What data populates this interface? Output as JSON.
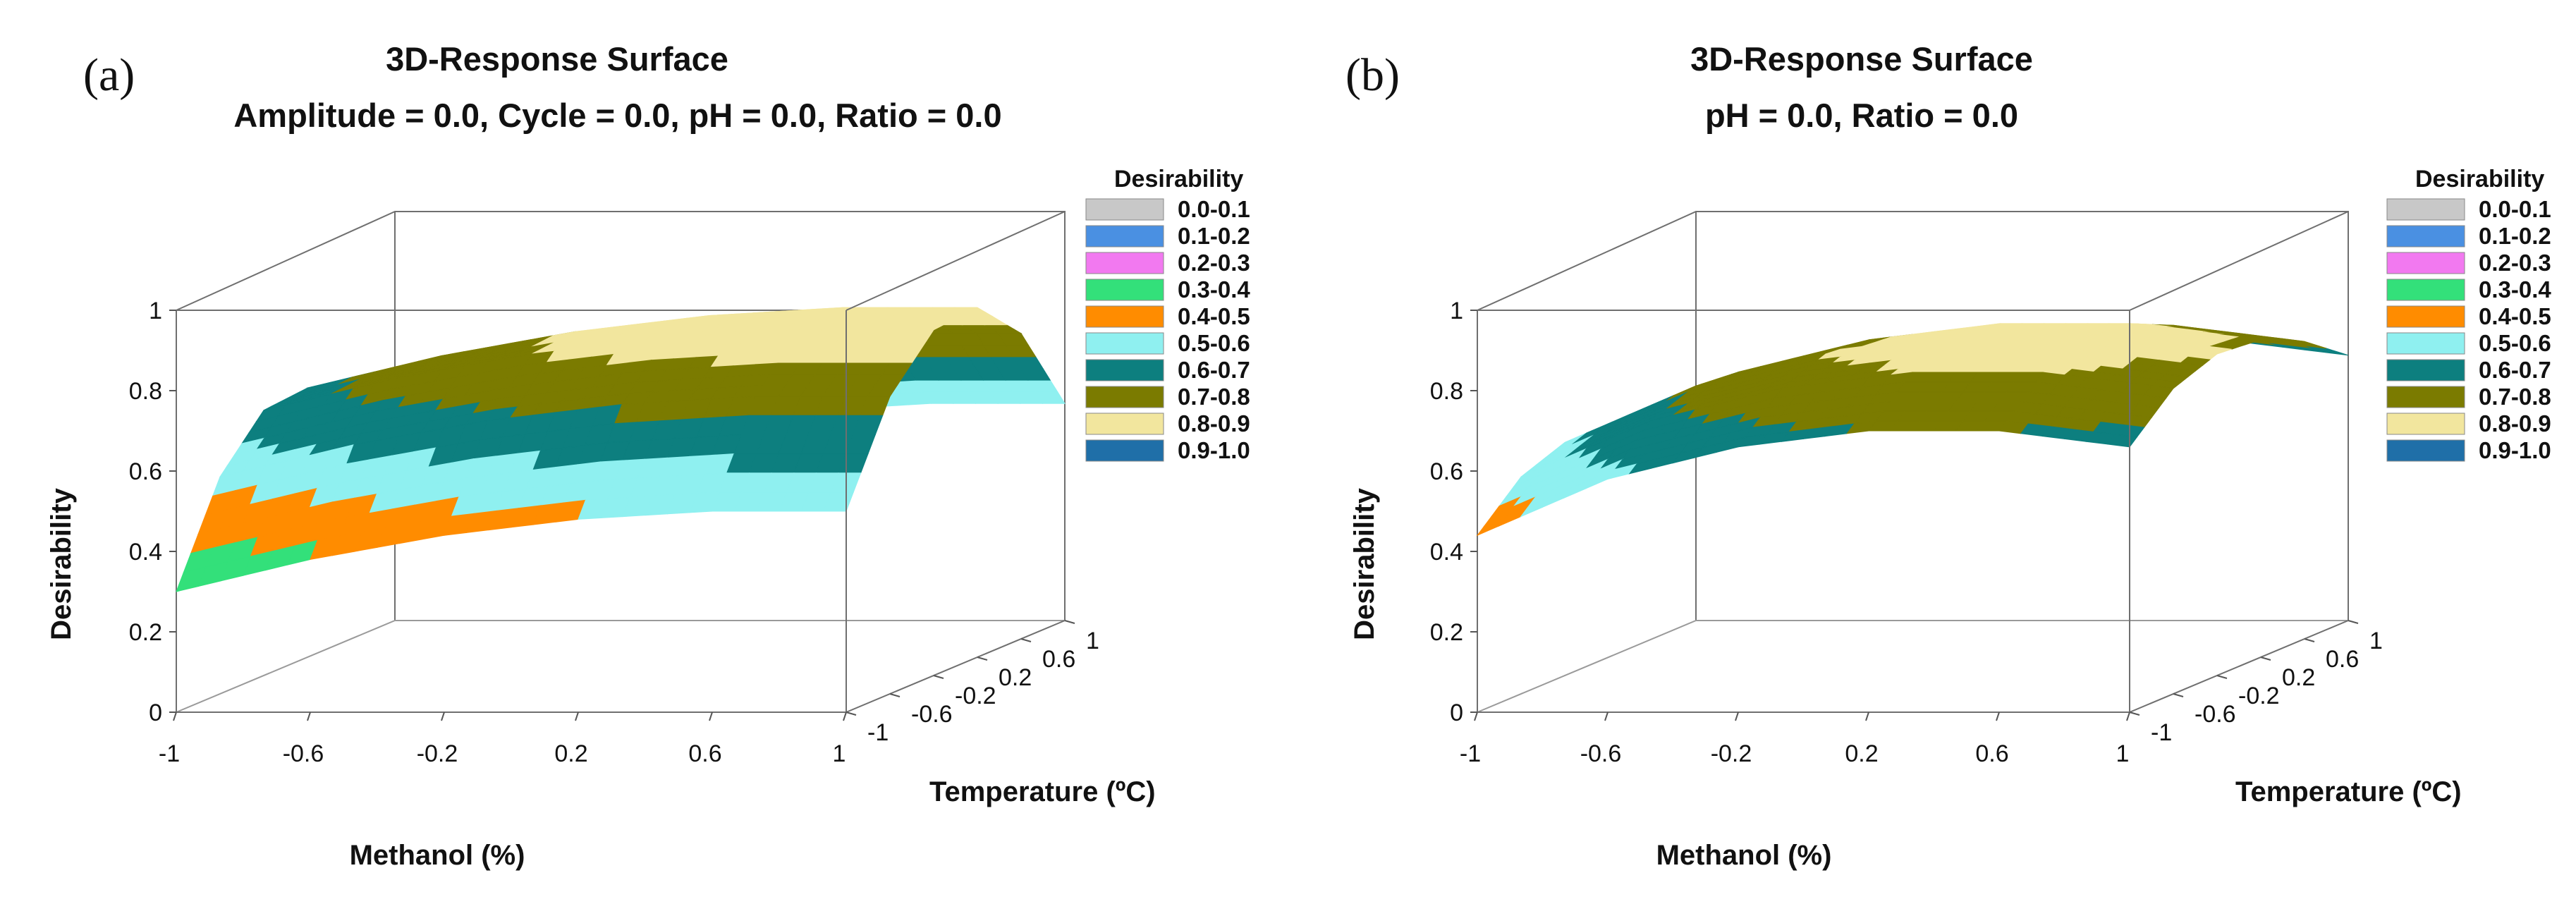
{
  "colors": {
    "0.0-0.1": "#c8c8c8",
    "0.1-0.2": "#4a90e2",
    "0.2-0.3": "#f279f0",
    "0.3-0.4": "#33e07a",
    "0.4-0.5": "#ff8c00",
    "0.5-0.6": "#8ff0f0",
    "0.6-0.7": "#0d7f7f",
    "0.7-0.8": "#7b7b00",
    "0.8-0.9": "#f2e69e",
    "0.9-1.0": "#1f6fa8",
    "frame": "#6f6f6f"
  },
  "chart_data": [
    {
      "panel_label": "(a)",
      "type": "surface",
      "title": "3D-Response Surface",
      "subtitle": "Amplitude = 0.0, Cycle = 0.0, pH = 0.0, Ratio = 0.0",
      "xlabel": "Methanol (%)",
      "ylabel": "Temperature (ºC)",
      "zlabel": "Desirability",
      "x_ticks": [
        "-1",
        "-0.6",
        "-0.2",
        "0.2",
        "0.6",
        "1"
      ],
      "y_ticks": [
        "-1",
        "-0.6",
        "-0.2",
        "0.2",
        "0.6",
        "1"
      ],
      "z_ticks": [
        "0",
        "0.2",
        "0.4",
        "0.6",
        "0.8",
        "1"
      ],
      "xlim": [
        -1,
        1
      ],
      "ylim": [
        -1,
        1
      ],
      "zlim": [
        0,
        1
      ],
      "surface": {
        "x": [
          -1,
          -0.6,
          -0.2,
          0.2,
          0.6,
          1
        ],
        "y": [
          -1,
          -0.6,
          -0.2,
          0.2,
          0.6,
          1
        ],
        "z": [
          [
            0.3,
            0.38,
            0.44,
            0.48,
            0.5,
            0.5
          ],
          [
            0.54,
            0.62,
            0.68,
            0.72,
            0.74,
            0.74
          ],
          [
            0.66,
            0.74,
            0.8,
            0.84,
            0.86,
            0.86
          ],
          [
            0.67,
            0.75,
            0.81,
            0.85,
            0.87,
            0.87
          ],
          [
            0.56,
            0.64,
            0.7,
            0.74,
            0.76,
            0.76
          ],
          [
            0.33,
            0.42,
            0.48,
            0.52,
            0.54,
            0.54
          ]
        ]
      },
      "legend": {
        "title": "Desirability",
        "items": [
          "0.0-0.1",
          "0.1-0.2",
          "0.2-0.3",
          "0.3-0.4",
          "0.4-0.5",
          "0.5-0.6",
          "0.6-0.7",
          "0.7-0.8",
          "0.8-0.9",
          "0.9-1.0"
        ]
      }
    },
    {
      "panel_label": "(b)",
      "type": "surface",
      "title": "3D-Response Surface",
      "subtitle": "pH = 0.0, Ratio = 0.0",
      "xlabel": "Methanol (%)",
      "ylabel": "Temperature (ºC)",
      "zlabel": "Desirability",
      "x_ticks": [
        "-1",
        "-0.6",
        "-0.2",
        "0.2",
        "0.6",
        "1"
      ],
      "y_ticks": [
        "-1",
        "-0.6",
        "-0.2",
        "0.2",
        "0.6",
        "1"
      ],
      "z_ticks": [
        "0",
        "0.2",
        "0.4",
        "0.6",
        "0.8",
        "1"
      ],
      "xlim": [
        -1,
        1
      ],
      "ylim": [
        -1,
        1
      ],
      "zlim": [
        0,
        1
      ],
      "surface": {
        "x": [
          -1,
          -0.6,
          -0.2,
          0.2,
          0.6,
          1
        ],
        "y": [
          -1,
          -0.6,
          -0.2,
          0.2,
          0.6,
          1
        ],
        "z": [
          [
            0.44,
            0.58,
            0.66,
            0.7,
            0.7,
            0.66
          ],
          [
            0.54,
            0.68,
            0.76,
            0.8,
            0.8,
            0.76
          ],
          [
            0.58,
            0.72,
            0.8,
            0.84,
            0.84,
            0.8
          ],
          [
            0.57,
            0.71,
            0.79,
            0.83,
            0.83,
            0.79
          ],
          [
            0.52,
            0.66,
            0.74,
            0.78,
            0.78,
            0.74
          ],
          [
            0.44,
            0.58,
            0.66,
            0.7,
            0.7,
            0.66
          ]
        ]
      },
      "legend": {
        "title": "Desirability",
        "items": [
          "0.0-0.1",
          "0.1-0.2",
          "0.2-0.3",
          "0.3-0.4",
          "0.4-0.5",
          "0.5-0.6",
          "0.6-0.7",
          "0.7-0.8",
          "0.8-0.9",
          "0.9-1.0"
        ]
      }
    }
  ]
}
